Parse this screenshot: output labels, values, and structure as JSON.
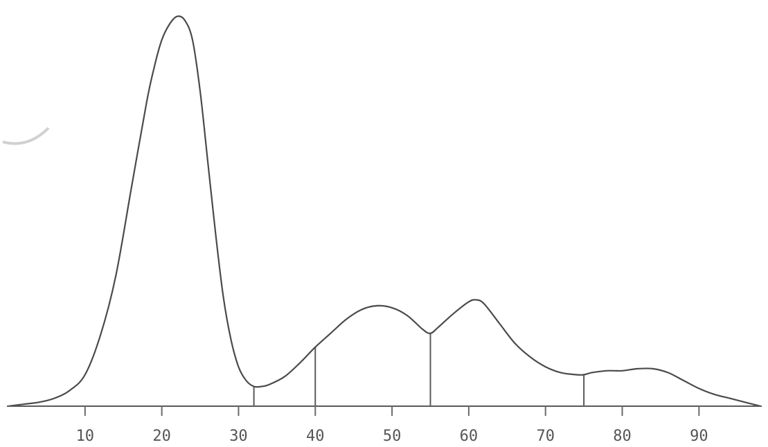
{
  "chart_data": {
    "type": "line",
    "title": "",
    "xlabel": "",
    "ylabel": "",
    "xlim": [
      0,
      98
    ],
    "ylim": [
      0,
      100
    ],
    "grid": false,
    "legend": "none",
    "x_ticks": [
      10,
      20,
      30,
      40,
      50,
      60,
      70,
      80,
      90
    ],
    "tick_labels": [
      "10",
      "20",
      "30",
      "40",
      "50",
      "60",
      "70",
      "80",
      "90"
    ],
    "series": [
      {
        "x": [
          0,
          2,
          4,
          6,
          8,
          10,
          12,
          14,
          16,
          18,
          19,
          20,
          21,
          22,
          23,
          24,
          25,
          26,
          27,
          28,
          29,
          30,
          31,
          32,
          33,
          34,
          36,
          38,
          40,
          42,
          44,
          46,
          48,
          50,
          52,
          54,
          55,
          56,
          58,
          60,
          61,
          62,
          64,
          66,
          68,
          70,
          72,
          74,
          75,
          76,
          78,
          80,
          82,
          84,
          86,
          88,
          90,
          92,
          94,
          96,
          98
        ],
        "y": [
          0,
          0.5,
          1,
          2,
          4,
          8,
          18,
          33,
          55,
          77,
          86,
          93,
          97,
          99,
          98,
          93,
          80,
          62,
          44,
          28,
          17,
          10,
          6.5,
          5,
          5,
          5.5,
          7.5,
          11,
          15,
          18.5,
          22,
          24.5,
          25.5,
          25,
          23,
          19.5,
          18.5,
          20,
          23.5,
          26.5,
          27,
          26,
          21,
          16,
          12.5,
          10,
          8.5,
          8,
          8,
          8.5,
          9,
          9,
          9.5,
          9.5,
          8.5,
          6.5,
          4.5,
          3,
          2,
          1,
          0
        ]
      }
    ],
    "dividers_x": [
      32,
      40,
      55,
      75
    ],
    "line_color": "#4a4a4a"
  }
}
